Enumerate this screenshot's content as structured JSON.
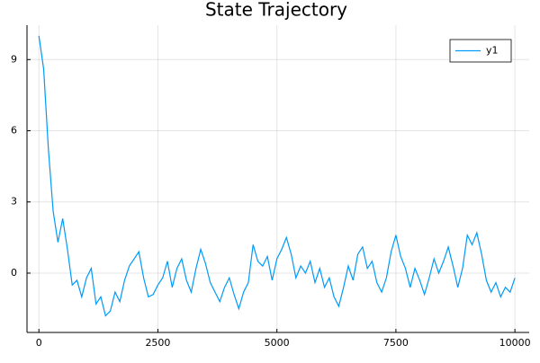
{
  "chart_data": {
    "type": "line",
    "title": "State Trajectory",
    "x": [
      0,
      100,
      200,
      300,
      400,
      500,
      600,
      700,
      800,
      900,
      1000,
      1100,
      1200,
      1300,
      1400,
      1500,
      1600,
      1700,
      1800,
      1900,
      2000,
      2100,
      2200,
      2300,
      2400,
      2500,
      2600,
      2700,
      2800,
      2900,
      3000,
      3100,
      3200,
      3300,
      3400,
      3500,
      3600,
      3700,
      3800,
      3900,
      4000,
      4100,
      4200,
      4300,
      4400,
      4500,
      4600,
      4700,
      4800,
      4900,
      5000,
      5100,
      5200,
      5300,
      5400,
      5500,
      5600,
      5700,
      5800,
      5900,
      6000,
      6100,
      6200,
      6300,
      6400,
      6500,
      6600,
      6700,
      6800,
      6900,
      7000,
      7100,
      7200,
      7300,
      7400,
      7500,
      7600,
      7700,
      7800,
      7900,
      8000,
      8100,
      8200,
      8300,
      8400,
      8500,
      8600,
      8700,
      8800,
      8900,
      9000,
      9100,
      9200,
      9300,
      9400,
      9500,
      9600,
      9700,
      9800,
      9900,
      10000
    ],
    "series": [
      {
        "name": "y1",
        "color": "#009af9",
        "values": [
          10.0,
          8.6,
          5.2,
          2.6,
          1.3,
          2.3,
          1.0,
          -0.5,
          -0.3,
          -1.0,
          -0.2,
          0.2,
          -1.3,
          -1.0,
          -1.8,
          -1.6,
          -0.8,
          -1.2,
          -0.3,
          0.3,
          0.6,
          0.9,
          -0.2,
          -1.0,
          -0.9,
          -0.5,
          -0.2,
          0.5,
          -0.6,
          0.2,
          0.6,
          -0.3,
          -0.8,
          0.2,
          1.0,
          0.4,
          -0.4,
          -0.8,
          -1.2,
          -0.6,
          -0.2,
          -0.9,
          -1.5,
          -0.8,
          -0.4,
          1.2,
          0.5,
          0.3,
          0.7,
          -0.3,
          0.6,
          1.0,
          1.5,
          0.8,
          -0.2,
          0.3,
          0.0,
          0.5,
          -0.4,
          0.2,
          -0.6,
          -0.2,
          -1.0,
          -1.4,
          -0.6,
          0.3,
          -0.3,
          0.8,
          1.1,
          0.2,
          0.5,
          -0.4,
          -0.8,
          -0.2,
          0.9,
          1.6,
          0.7,
          0.2,
          -0.6,
          0.2,
          -0.3,
          -0.9,
          -0.2,
          0.6,
          0.0,
          0.5,
          1.1,
          0.3,
          -0.6,
          0.2,
          1.6,
          1.2,
          1.7,
          0.8,
          -0.3,
          -0.8,
          -0.4,
          -1.0,
          -0.6,
          -0.8,
          -0.2
        ]
      }
    ],
    "xlim": [
      -250,
      10300
    ],
    "ylim": [
      -2.5,
      10.45
    ],
    "xticks": [
      0,
      2500,
      5000,
      7500,
      10000
    ],
    "yticks": [
      0,
      3,
      6,
      9
    ],
    "grid": true,
    "legend": "top-right"
  }
}
